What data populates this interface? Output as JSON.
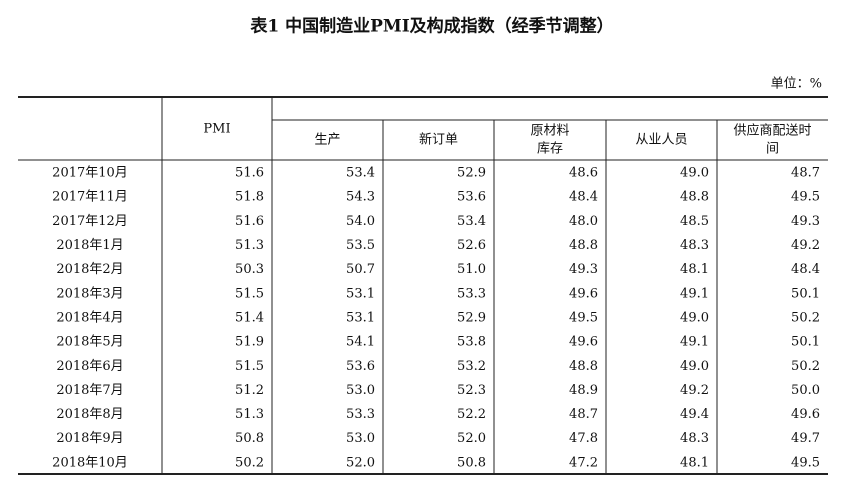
{
  "header": {
    "title": "表1  中国制造业PMI及构成指数（经季节调整）",
    "unit": "单位：%"
  },
  "table": {
    "columns": [
      "",
      "PMI",
      "生产",
      "新订单",
      [
        "原材料",
        "库存"
      ],
      "从业人员",
      [
        "供应商配送时",
        "间"
      ]
    ],
    "rows": [
      [
        "2017年10月",
        "51.6",
        "53.4",
        "52.9",
        "48.6",
        "49.0",
        "48.7"
      ],
      [
        "2017年11月",
        "51.8",
        "54.3",
        "53.6",
        "48.4",
        "48.8",
        "49.5"
      ],
      [
        "2017年12月",
        "51.6",
        "54.0",
        "53.4",
        "48.0",
        "48.5",
        "49.3"
      ],
      [
        "2018年1月",
        "51.3",
        "53.5",
        "52.6",
        "48.8",
        "48.3",
        "49.2"
      ],
      [
        "2018年2月",
        "50.3",
        "50.7",
        "51.0",
        "49.3",
        "48.1",
        "48.4"
      ],
      [
        "2018年3月",
        "51.5",
        "53.1",
        "53.3",
        "49.6",
        "49.1",
        "50.1"
      ],
      [
        "2018年4月",
        "51.4",
        "53.1",
        "52.9",
        "49.5",
        "49.0",
        "50.2"
      ],
      [
        "2018年5月",
        "51.9",
        "54.1",
        "53.8",
        "49.6",
        "49.1",
        "50.1"
      ],
      [
        "2018年6月",
        "51.5",
        "53.6",
        "53.2",
        "48.8",
        "49.0",
        "50.2"
      ],
      [
        "2018年7月",
        "51.2",
        "53.0",
        "52.3",
        "48.9",
        "49.2",
        "50.0"
      ],
      [
        "2018年8月",
        "51.3",
        "53.3",
        "52.2",
        "48.7",
        "49.4",
        "49.6"
      ],
      [
        "2018年9月",
        "50.8",
        "53.0",
        "52.0",
        "47.8",
        "48.3",
        "49.7"
      ],
      [
        "2018年10月",
        "50.2",
        "52.0",
        "50.8",
        "47.2",
        "48.1",
        "49.5"
      ]
    ]
  }
}
